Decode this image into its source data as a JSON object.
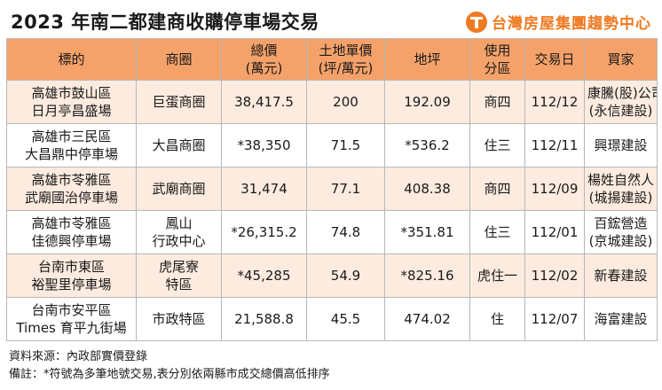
{
  "title": "2023 年南二都建商收購停車場交易",
  "brand": {
    "name": "台灣房屋集團趨勢中心",
    "icon": "logo-t-icon",
    "color": "#ef7a22"
  },
  "colors": {
    "header_bg": "#f5a26a",
    "row_alt_bg": "#fdebdf",
    "border": "#b7b7b7"
  },
  "table": {
    "headers": [
      [
        "標的"
      ],
      [
        "商圈"
      ],
      [
        "總價",
        "(萬元)"
      ],
      [
        "土地單價",
        "(坪/萬元)"
      ],
      [
        "地坪"
      ],
      [
        "使用",
        "分區"
      ],
      [
        "交易日"
      ],
      [
        "買家"
      ]
    ],
    "rows": [
      [
        [
          "高雄市鼓山區",
          "日月亭昌盛場"
        ],
        [
          "巨蛋商圈"
        ],
        [
          "38,417.5"
        ],
        [
          "200"
        ],
        [
          "192.09"
        ],
        [
          "商四"
        ],
        [
          "112/12"
        ],
        [
          "康騰(股)公司",
          "(永信建設)"
        ]
      ],
      [
        [
          "高雄市三民區",
          "大昌鼎中停車場"
        ],
        [
          "大昌商圈"
        ],
        [
          "*38,350"
        ],
        [
          "71.5"
        ],
        [
          "*536.2"
        ],
        [
          "住三"
        ],
        [
          "112/11"
        ],
        [
          "興璟建設"
        ]
      ],
      [
        [
          "高雄市苓雅區",
          "武廟國治停車場"
        ],
        [
          "武廟商圈"
        ],
        [
          "31,474"
        ],
        [
          "77.1"
        ],
        [
          "408.38"
        ],
        [
          "商四"
        ],
        [
          "112/09"
        ],
        [
          "楊姓自然人",
          "(城揚建設)"
        ]
      ],
      [
        [
          "高雄市苓雅區",
          "佳德興停車場"
        ],
        [
          "鳳山",
          "行政中心"
        ],
        [
          "*26,315.2"
        ],
        [
          "74.8"
        ],
        [
          "*351.81"
        ],
        [
          "住三"
        ],
        [
          "112/01"
        ],
        [
          "百鋐營造",
          "(京城建設)"
        ]
      ],
      [
        [
          "台南市東區",
          "裕聖里停車場"
        ],
        [
          "虎尾寮",
          "特區"
        ],
        [
          "*45,285"
        ],
        [
          "54.9"
        ],
        [
          "*825.16"
        ],
        [
          "虎住一"
        ],
        [
          "112/02"
        ],
        [
          "新春建設"
        ]
      ],
      [
        [
          "台南市安平區",
          "Times 育平九街場"
        ],
        [
          "市政特區"
        ],
        [
          "21,588.8"
        ],
        [
          "45.5"
        ],
        [
          "474.02"
        ],
        [
          "住"
        ],
        [
          "112/07"
        ],
        [
          "海富建設"
        ]
      ]
    ]
  },
  "footer": {
    "source": "資料來源：內政部實價登錄",
    "note": "備註：*符號為多筆地號交易,表分別依兩縣市成交總價高低排序"
  }
}
